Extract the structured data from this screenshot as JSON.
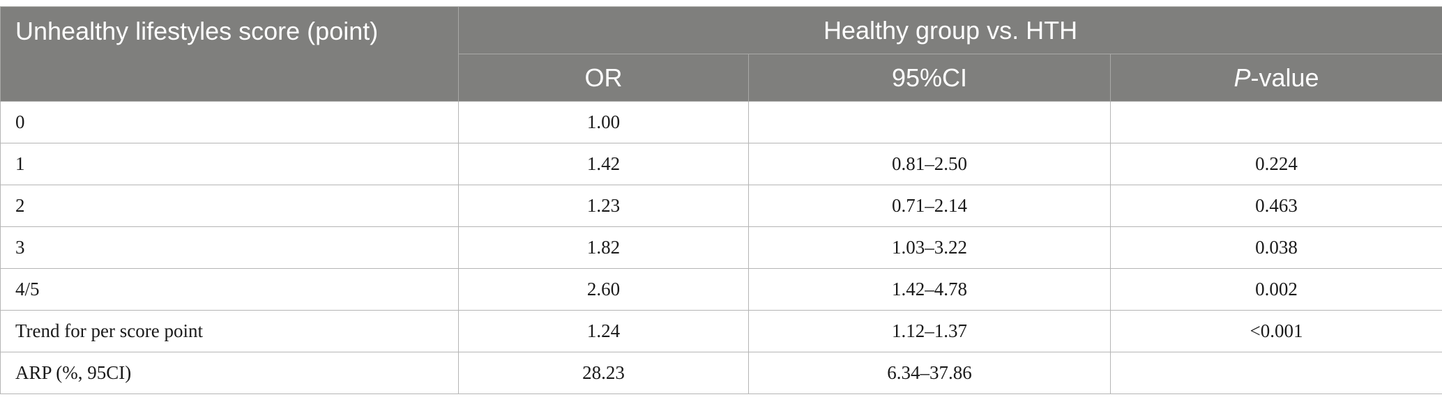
{
  "table": {
    "row_header": "Unhealthy lifestyles score (point)",
    "group_header": "Healthy group vs. HTH",
    "columns": {
      "or": "OR",
      "ci": "95%CI",
      "p_italic": "P",
      "p_rest": "-value"
    },
    "rows": [
      {
        "label": "0",
        "or": "1.00",
        "ci": "",
        "p": ""
      },
      {
        "label": "1",
        "or": "1.42",
        "ci": "0.81–2.50",
        "p": "0.224"
      },
      {
        "label": "2",
        "or": "1.23",
        "ci": "0.71–2.14",
        "p": "0.463"
      },
      {
        "label": "3",
        "or": "1.82",
        "ci": "1.03–3.22",
        "p": "0.038"
      },
      {
        "label": "4/5",
        "or": "2.60",
        "ci": "1.42–4.78",
        "p": "0.002"
      },
      {
        "label": "Trend for per score point",
        "or": "1.24",
        "ci": "1.12–1.37",
        "p": "<0.001"
      },
      {
        "label": "ARP (%, 95CI)",
        "or": "28.23",
        "ci": "6.34–37.86",
        "p": ""
      }
    ]
  }
}
